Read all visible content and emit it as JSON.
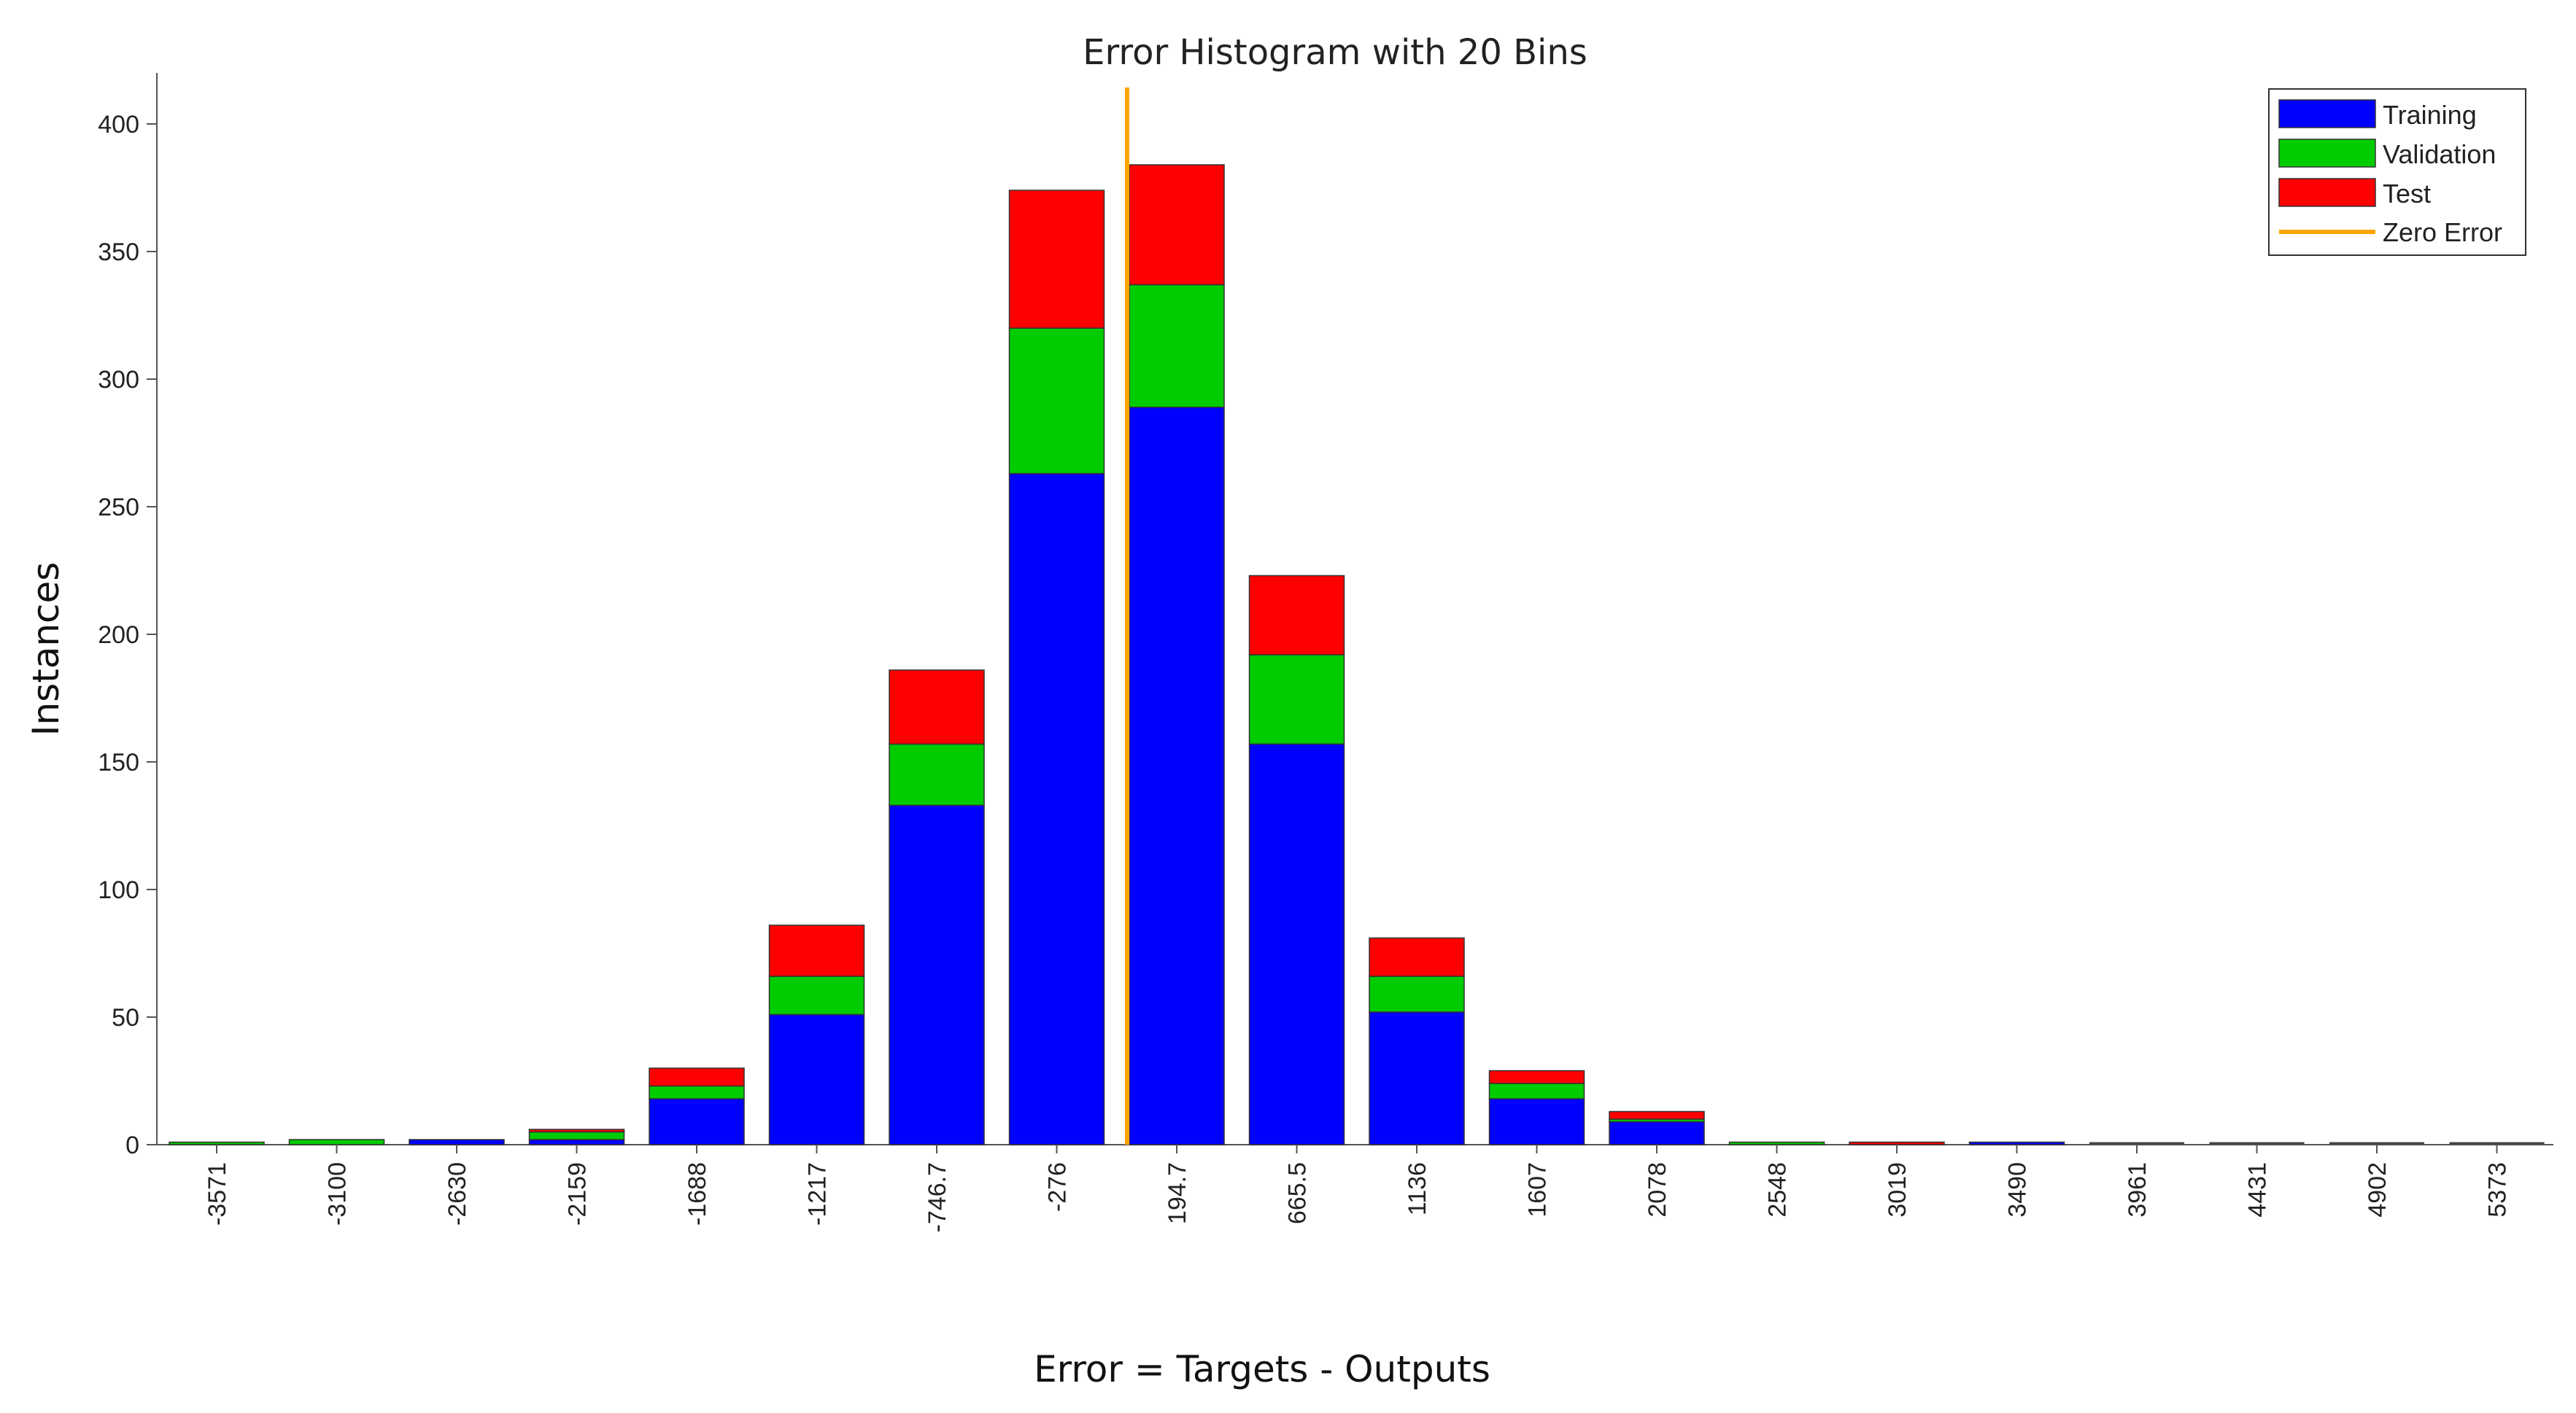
{
  "chart_data": {
    "type": "bar",
    "stacked": true,
    "title": "Error Histogram with 20 Bins",
    "xlabel": "Error = Targets - Outputs",
    "ylabel": "Instances",
    "ylim": [
      0,
      420
    ],
    "yticks": [
      0,
      50,
      100,
      150,
      200,
      250,
      300,
      350,
      400
    ],
    "categories": [
      "-3571",
      "-3100",
      "-2630",
      "-2159",
      "-1688",
      "-1217",
      "-746.7",
      "-276",
      "194.7",
      "665.5",
      "1136",
      "1607",
      "2078",
      "2548",
      "3019",
      "3490",
      "3961",
      "4431",
      "4902",
      "5373"
    ],
    "series": [
      {
        "name": "Training",
        "color": "#0000ff",
        "values": [
          0,
          0,
          2,
          2,
          18,
          51,
          133,
          263,
          289,
          157,
          52,
          18,
          9,
          0,
          0,
          1,
          0,
          0,
          0,
          0
        ]
      },
      {
        "name": "Validation",
        "color": "#00cc00",
        "values": [
          1,
          2,
          0,
          3,
          5,
          15,
          24,
          57,
          48,
          35,
          14,
          6,
          1,
          1,
          0,
          0,
          0,
          0,
          0,
          0
        ]
      },
      {
        "name": "Test",
        "color": "#ff0000",
        "values": [
          0,
          0,
          0,
          1,
          7,
          20,
          29,
          54,
          47,
          31,
          15,
          5,
          3,
          0,
          1,
          0,
          0,
          0,
          0,
          0
        ]
      }
    ],
    "zero_error": {
      "name": "Zero Error",
      "color": "#ffa500",
      "position": "between -276 and 194.7"
    },
    "legend": "top-right",
    "grid": false
  }
}
